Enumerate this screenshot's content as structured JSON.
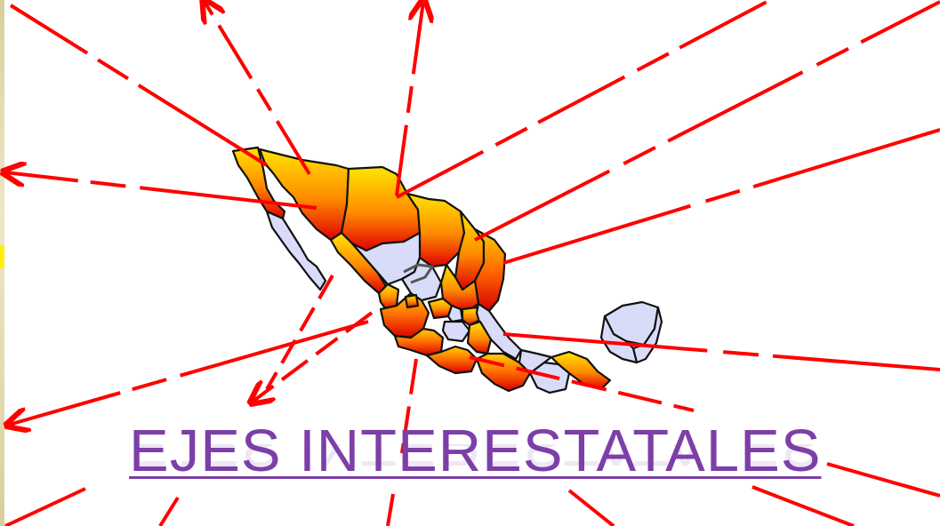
{
  "slide": {
    "title": "EJES INTERESTATALES"
  },
  "map": {
    "subject": "Mexico states map",
    "highlight_gradient": [
      "#ffe400",
      "#ff8a00",
      "#e00000"
    ],
    "base_state_color": "#d8dcf8",
    "outline_color": "#111111"
  },
  "arrows": {
    "color": "#ff0000",
    "style": "dashed lines radiating from central Mexico, arrowheads at outer ends"
  }
}
